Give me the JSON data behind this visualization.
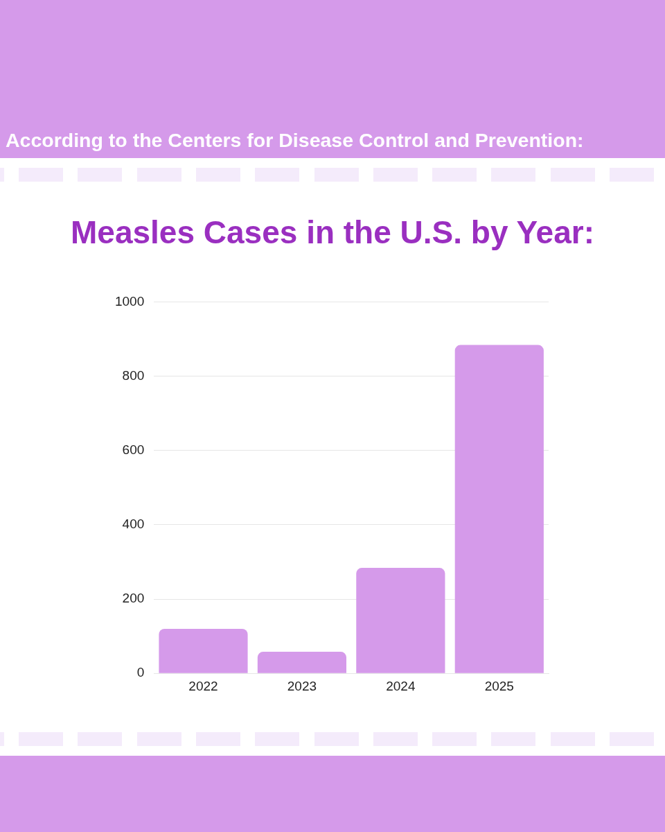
{
  "chart_data": {
    "type": "bar",
    "title": "Measles Cases in the U.S. by Year:",
    "annotations": [
      "According to the Centers for Disease Control and Prevention:"
    ],
    "categories": [
      "2022",
      "2023",
      "2024",
      "2025"
    ],
    "values": [
      120,
      58,
      284,
      884
    ],
    "color": "#d59aea",
    "ylim": [
      0,
      1000
    ],
    "yticks": [
      0,
      200,
      400,
      600,
      800,
      1000
    ],
    "grid": "y",
    "legend": false
  }
}
